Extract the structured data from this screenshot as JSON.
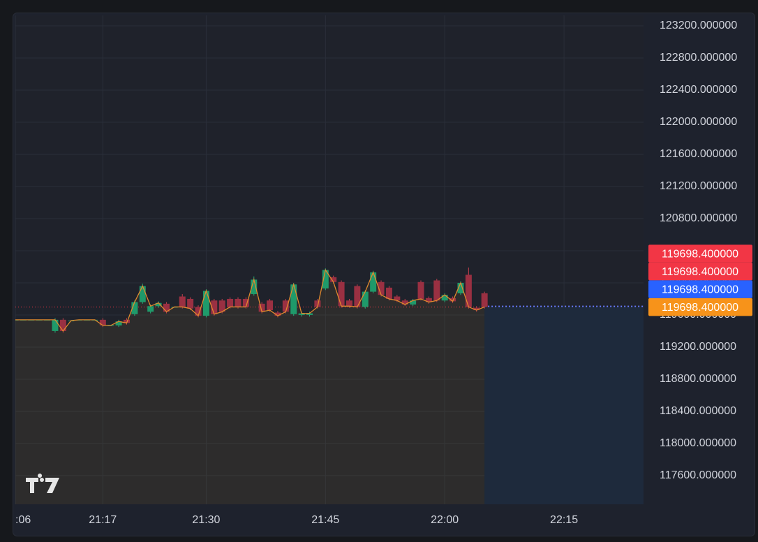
{
  "chart_data": {
    "type": "candlestick",
    "x": [
      "21:06",
      "21:07",
      "21:08",
      "21:09",
      "21:10",
      "21:11",
      "21:12",
      "21:13",
      "21:14",
      "21:15",
      "21:16",
      "21:17",
      "21:18",
      "21:19",
      "21:20",
      "21:21",
      "21:22",
      "21:23",
      "21:24",
      "21:25",
      "21:26",
      "21:27",
      "21:28",
      "21:29",
      "21:30",
      "21:31",
      "21:32",
      "21:33",
      "21:34",
      "21:35",
      "21:36",
      "21:37",
      "21:38",
      "21:39",
      "21:40",
      "21:41",
      "21:42",
      "21:43",
      "21:44",
      "21:45",
      "21:46",
      "21:47",
      "21:48",
      "21:49",
      "21:50",
      "21:51",
      "21:52",
      "21:53",
      "21:54",
      "21:55",
      "21:56",
      "21:57",
      "21:58",
      "21:59",
      "22:00",
      "22:01",
      "22:02",
      "22:03",
      "22:04",
      "22:05"
    ],
    "open": [
      119540,
      119540,
      119540,
      119540,
      119540,
      119400,
      119540,
      119530,
      119540,
      119540,
      119540,
      119540,
      119470,
      119470,
      119540,
      119610,
      119760,
      119640,
      119710,
      119740,
      119700,
      119830,
      119800,
      119700,
      119590,
      119780,
      119780,
      119800,
      119800,
      119800,
      119860,
      119740,
      119780,
      119630,
      119780,
      119610,
      119600,
      119600,
      119780,
      119930,
      120070,
      120010,
      119780,
      119960,
      119700,
      119890,
      120010,
      119940,
      119830,
      119780,
      119730,
      120010,
      119810,
      120030,
      119780,
      119810,
      119870,
      120100,
      119690,
      119870
    ],
    "high": [
      119540,
      119540,
      119540,
      119540,
      119540,
      119560,
      119560,
      119530,
      119540,
      119540,
      119540,
      119560,
      119470,
      119540,
      119560,
      119780,
      119990,
      119730,
      119770,
      119760,
      119700,
      119860,
      119820,
      119720,
      119920,
      119800,
      119800,
      119820,
      119820,
      119820,
      120080,
      119760,
      119800,
      119650,
      119800,
      120000,
      119640,
      119640,
      119800,
      120180,
      120090,
      120030,
      119800,
      119980,
      119910,
      120150,
      120030,
      119960,
      119850,
      119800,
      119800,
      120030,
      119830,
      120050,
      119870,
      119830,
      120020,
      120190,
      119710,
      119890
    ],
    "low": [
      119540,
      119540,
      119540,
      119540,
      119540,
      119380,
      119380,
      119530,
      119540,
      119540,
      119540,
      119450,
      119470,
      119450,
      119480,
      119590,
      119740,
      119620,
      119690,
      119620,
      119700,
      119680,
      119660,
      119570,
      119570,
      119590,
      119620,
      119680,
      119680,
      119680,
      119840,
      119620,
      119640,
      119570,
      119620,
      119590,
      119580,
      119580,
      119680,
      119910,
      119990,
      119690,
      119690,
      119680,
      119680,
      119870,
      119830,
      119780,
      119760,
      119710,
      119710,
      119780,
      119740,
      119760,
      119760,
      119750,
      119850,
      119680,
      119640,
      119680
    ],
    "close": [
      119540,
      119540,
      119540,
      119540,
      119540,
      119540,
      119400,
      119530,
      119540,
      119540,
      119540,
      119470,
      119470,
      119520,
      119500,
      119760,
      119960,
      119710,
      119750,
      119640,
      119700,
      119700,
      119680,
      119590,
      119900,
      119610,
      119640,
      119700,
      119700,
      119700,
      120040,
      119640,
      119660,
      119590,
      119640,
      119980,
      119620,
      119620,
      119700,
      120160,
      120010,
      119710,
      119710,
      119700,
      119890,
      120130,
      119850,
      119800,
      119780,
      119730,
      119780,
      119800,
      119760,
      119780,
      119850,
      119770,
      120000,
      119700,
      119660,
      119700
    ],
    "up_color": "#1f9a6a",
    "down_color": "#9a3042",
    "line_color": "#e0892e",
    "ylim": [
      117243,
      123330
    ],
    "yticks": [
      {
        "value": 117600,
        "label": "117600.000000"
      },
      {
        "value": 118000,
        "label": "118000.000000"
      },
      {
        "value": 118400,
        "label": "118400.000000"
      },
      {
        "value": 118800,
        "label": "118800.000000"
      },
      {
        "value": 119200,
        "label": "119200.000000"
      },
      {
        "value": 119600,
        "label": "119600.000000"
      },
      {
        "value": 120000,
        "label": "120000.000000"
      },
      {
        "value": 120400,
        "label": "120400.000000"
      },
      {
        "value": 120800,
        "label": "120800.000000"
      },
      {
        "value": 121200,
        "label": "121200.000000"
      },
      {
        "value": 121600,
        "label": "121600.000000"
      },
      {
        "value": 122000,
        "label": "122000.000000"
      },
      {
        "value": 122400,
        "label": "122400.000000"
      },
      {
        "value": 122800,
        "label": "122800.000000"
      },
      {
        "value": 123200,
        "label": "123200.000000"
      }
    ],
    "xlim": [
      "21:06",
      "22:25"
    ],
    "xticks": [
      {
        "value": "21:06",
        "label": ":06"
      },
      "21:17",
      "21:30",
      "21:45",
      "22:00",
      "22:15"
    ],
    "grid": true,
    "last_price": 119698.4,
    "price_tags": [
      {
        "value": 119698.4,
        "label": "119698.400000",
        "color": "#f23645"
      },
      {
        "value": 119698.4,
        "label": "119698.400000",
        "color": "#f23645"
      },
      {
        "value": 119698.4,
        "label": "119698.400000",
        "color": "#2962ff"
      },
      {
        "value": 119698.4,
        "label": "119698.400000",
        "color": "#f7931a"
      }
    ]
  }
}
